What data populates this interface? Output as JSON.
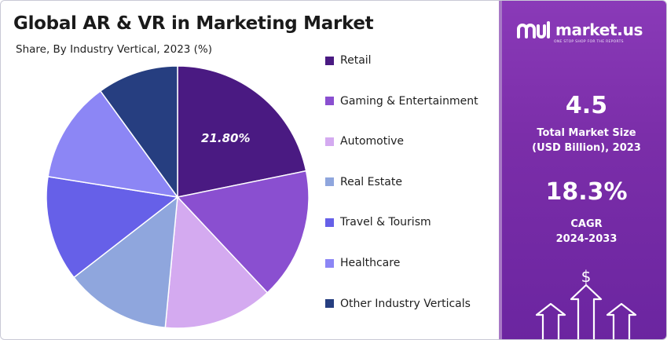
{
  "title": "Global AR & VR in Marketing Market",
  "subtitle": "Share, By Industry Vertical, 2023 (%)",
  "chart_data": {
    "type": "pie",
    "title": "Global AR & VR in Marketing Market",
    "subtitle": "Share, By Industry Vertical, 2023 (%)",
    "legend_position": "right",
    "categories": [
      "Retail",
      "Gaming & Entertainment",
      "Automotive",
      "Real Estate",
      "Travel & Tourism",
      "Healthcare",
      "Other Industry Verticals"
    ],
    "values": [
      21.8,
      16.2,
      13.5,
      13.0,
      13.0,
      12.5,
      10.0
    ],
    "colors": [
      "#4a1a82",
      "#8a4fd0",
      "#d4aaf0",
      "#8fa6dd",
      "#6660e8",
      "#8c86f5",
      "#263e80"
    ],
    "data_labels": [
      "21.80%",
      "",
      "",
      "",
      "",
      "",
      ""
    ]
  },
  "panel": {
    "brand_name": "market.us",
    "brand_tagline": "ONE STOP SHOP FOR THE REPORTS",
    "market_size_value": "4.5",
    "market_size_label_line1": "Total Market Size",
    "market_size_label_line2": "(USD Billion), 2023",
    "cagr_value": "18.3%",
    "cagr_label_line1": "CAGR",
    "cagr_label_line2": "2024-2033",
    "currency_symbol": "$",
    "background_color": "#7b2ea9"
  }
}
